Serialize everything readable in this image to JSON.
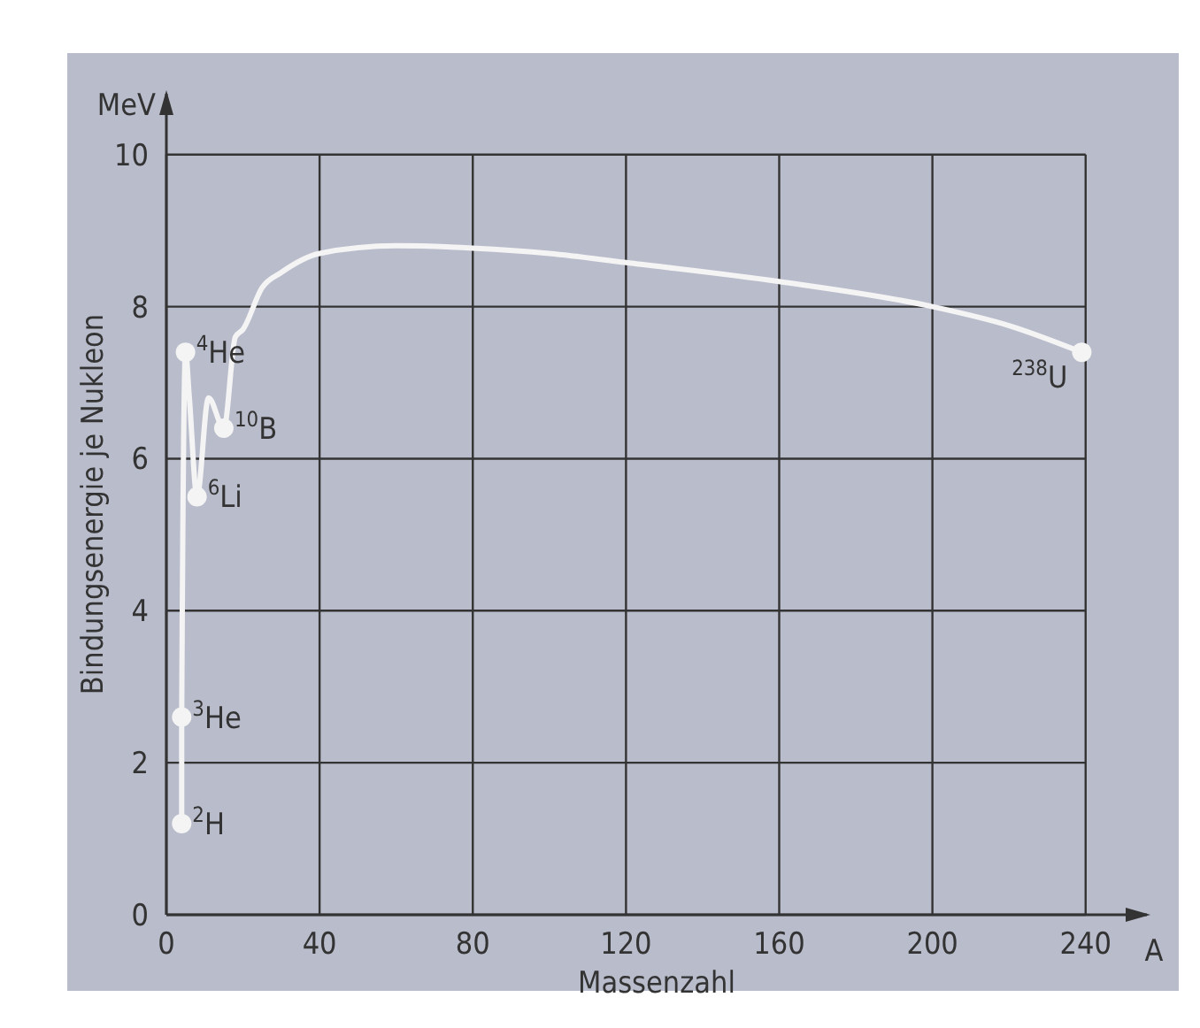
{
  "chart_data": {
    "type": "line",
    "xlabel": "Massenzahl",
    "ylabel": "Bindungsenergie je Nukleon",
    "xlim": [
      0,
      256
    ],
    "ylim": [
      0,
      10.8
    ],
    "xticks": [
      0,
      40,
      80,
      120,
      160,
      200,
      240
    ],
    "yticks": [
      0,
      2,
      4,
      6,
      8,
      10
    ],
    "grid": true,
    "marker": "none",
    "line_style": "solid",
    "series": [
      {
        "color": "#f4f4f4",
        "x": [
          4,
          4,
          5,
          6,
          8,
          11,
          15,
          18,
          20,
          25,
          30,
          40,
          60,
          80,
          100,
          120,
          160,
          200,
          220,
          239
        ],
        "values": [
          1.2,
          2.6,
          7.4,
          6.8,
          5.5,
          6.8,
          6.4,
          7.6,
          7.7,
          8.25,
          8.45,
          8.7,
          8.8,
          8.77,
          8.7,
          8.58,
          8.33,
          8.0,
          7.75,
          7.4
        ]
      },
      {
        "type": "scatter",
        "color": "#f4f4f4",
        "marker": "circle",
        "x": [
          4,
          4,
          5,
          8,
          15,
          239
        ],
        "values": [
          1.2,
          2.6,
          7.4,
          5.5,
          6.4,
          7.4
        ]
      }
    ],
    "annotations": [
      "MeV",
      "A",
      {
        "text": "$^{2}$H",
        "x": 4,
        "y": 1.2
      },
      {
        "text": "$^{3}$He",
        "x": 4,
        "y": 2.6
      },
      {
        "text": "$^{4}$He",
        "x": 5,
        "y": 7.4
      },
      {
        "text": "$^{6}$Li",
        "x": 8,
        "y": 5.5
      },
      {
        "text": "$^{10}$B",
        "x": 15,
        "y": 6.4
      },
      {
        "text": "$^{238}$U",
        "x": 239,
        "y": 7.4
      }
    ]
  }
}
